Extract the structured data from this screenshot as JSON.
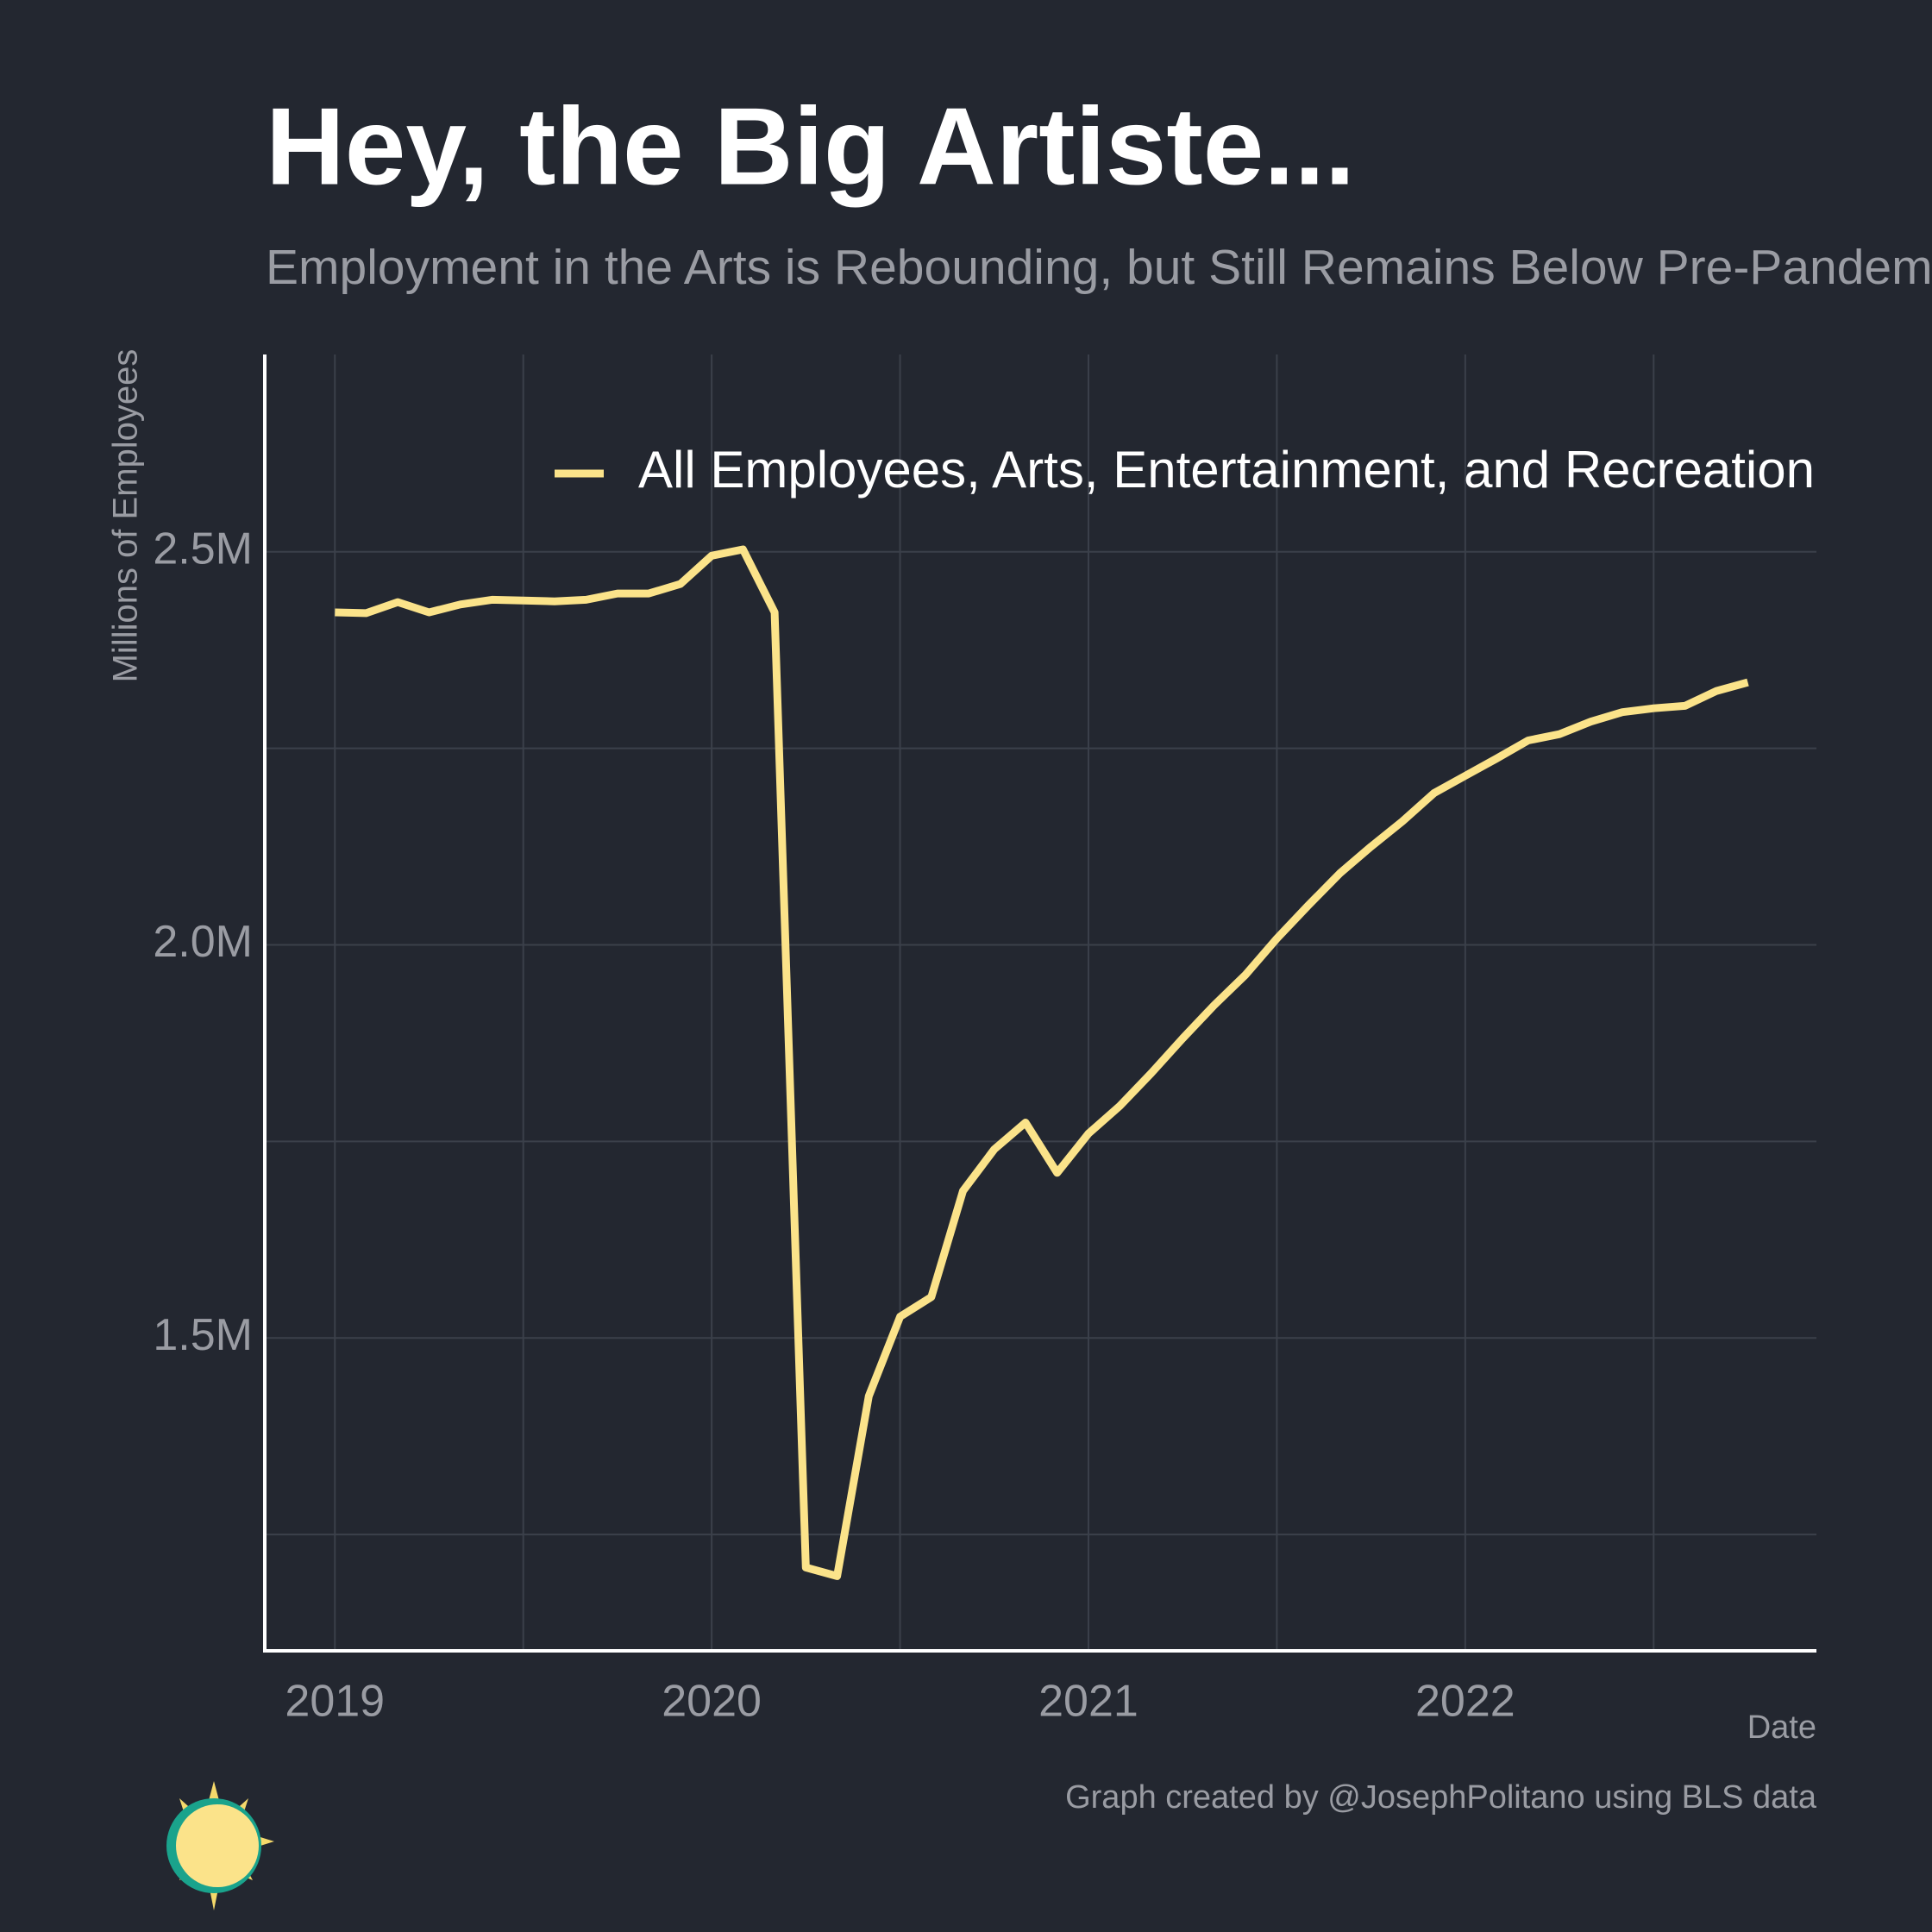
{
  "chart_data": {
    "type": "line",
    "title": "Hey, the Big Artiste...",
    "subtitle": "Employment in the Arts is Rebounding, but Still Remains Below Pre-Pandemic Levels",
    "ylabel": "Millions of Employees",
    "xlabel": "Date",
    "caption": "Graph created by @JosephPolitano using BLS data",
    "x": [
      2019.0,
      2019.083,
      2019.167,
      2019.25,
      2019.333,
      2019.417,
      2019.5,
      2019.583,
      2019.667,
      2019.75,
      2019.833,
      2019.917,
      2020.0,
      2020.083,
      2020.167,
      2020.25,
      2020.333,
      2020.417,
      2020.5,
      2020.583,
      2020.667,
      2020.75,
      2020.833,
      2020.917,
      2021.0,
      2021.083,
      2021.167,
      2021.25,
      2021.333,
      2021.417,
      2021.5,
      2021.583,
      2021.667,
      2021.75,
      2021.833,
      2021.917,
      2022.0,
      2022.083,
      2022.167,
      2022.25,
      2022.333,
      2022.417,
      2022.5,
      2022.583,
      2022.667,
      2022.75
    ],
    "series": [
      {
        "name": "All Employees, Arts, Entertainment, and Recreation",
        "color": "#fbe38a",
        "values": [
          2.423,
          2.422,
          2.436,
          2.423,
          2.433,
          2.439,
          2.438,
          2.437,
          2.439,
          2.447,
          2.447,
          2.459,
          2.495,
          2.503,
          2.423,
          1.208,
          1.197,
          1.426,
          1.527,
          1.552,
          1.687,
          1.74,
          1.774,
          1.71,
          1.76,
          1.795,
          1.837,
          1.881,
          1.923,
          1.962,
          2.008,
          2.05,
          2.091,
          2.125,
          2.157,
          2.193,
          2.215,
          2.237,
          2.26,
          2.268,
          2.284,
          2.296,
          2.301,
          2.304,
          2.323,
          2.334
        ]
      }
    ],
    "xlim": [
      2018.814,
      2022.932
    ],
    "xticks": [
      2019,
      2020,
      2021,
      2022
    ],
    "xminorticks": [
      2019.5,
      2020.5,
      2021.5,
      2022.5
    ],
    "ylim": [
      1.102,
      2.751
    ],
    "yticks": [
      {
        "value": 1.5,
        "label": "1.5M"
      },
      {
        "value": 2.0,
        "label": "2.0M"
      },
      {
        "value": 2.5,
        "label": "2.5M"
      }
    ],
    "yminorticks": [
      1.25,
      1.75,
      2.25
    ],
    "grid": true
  }
}
